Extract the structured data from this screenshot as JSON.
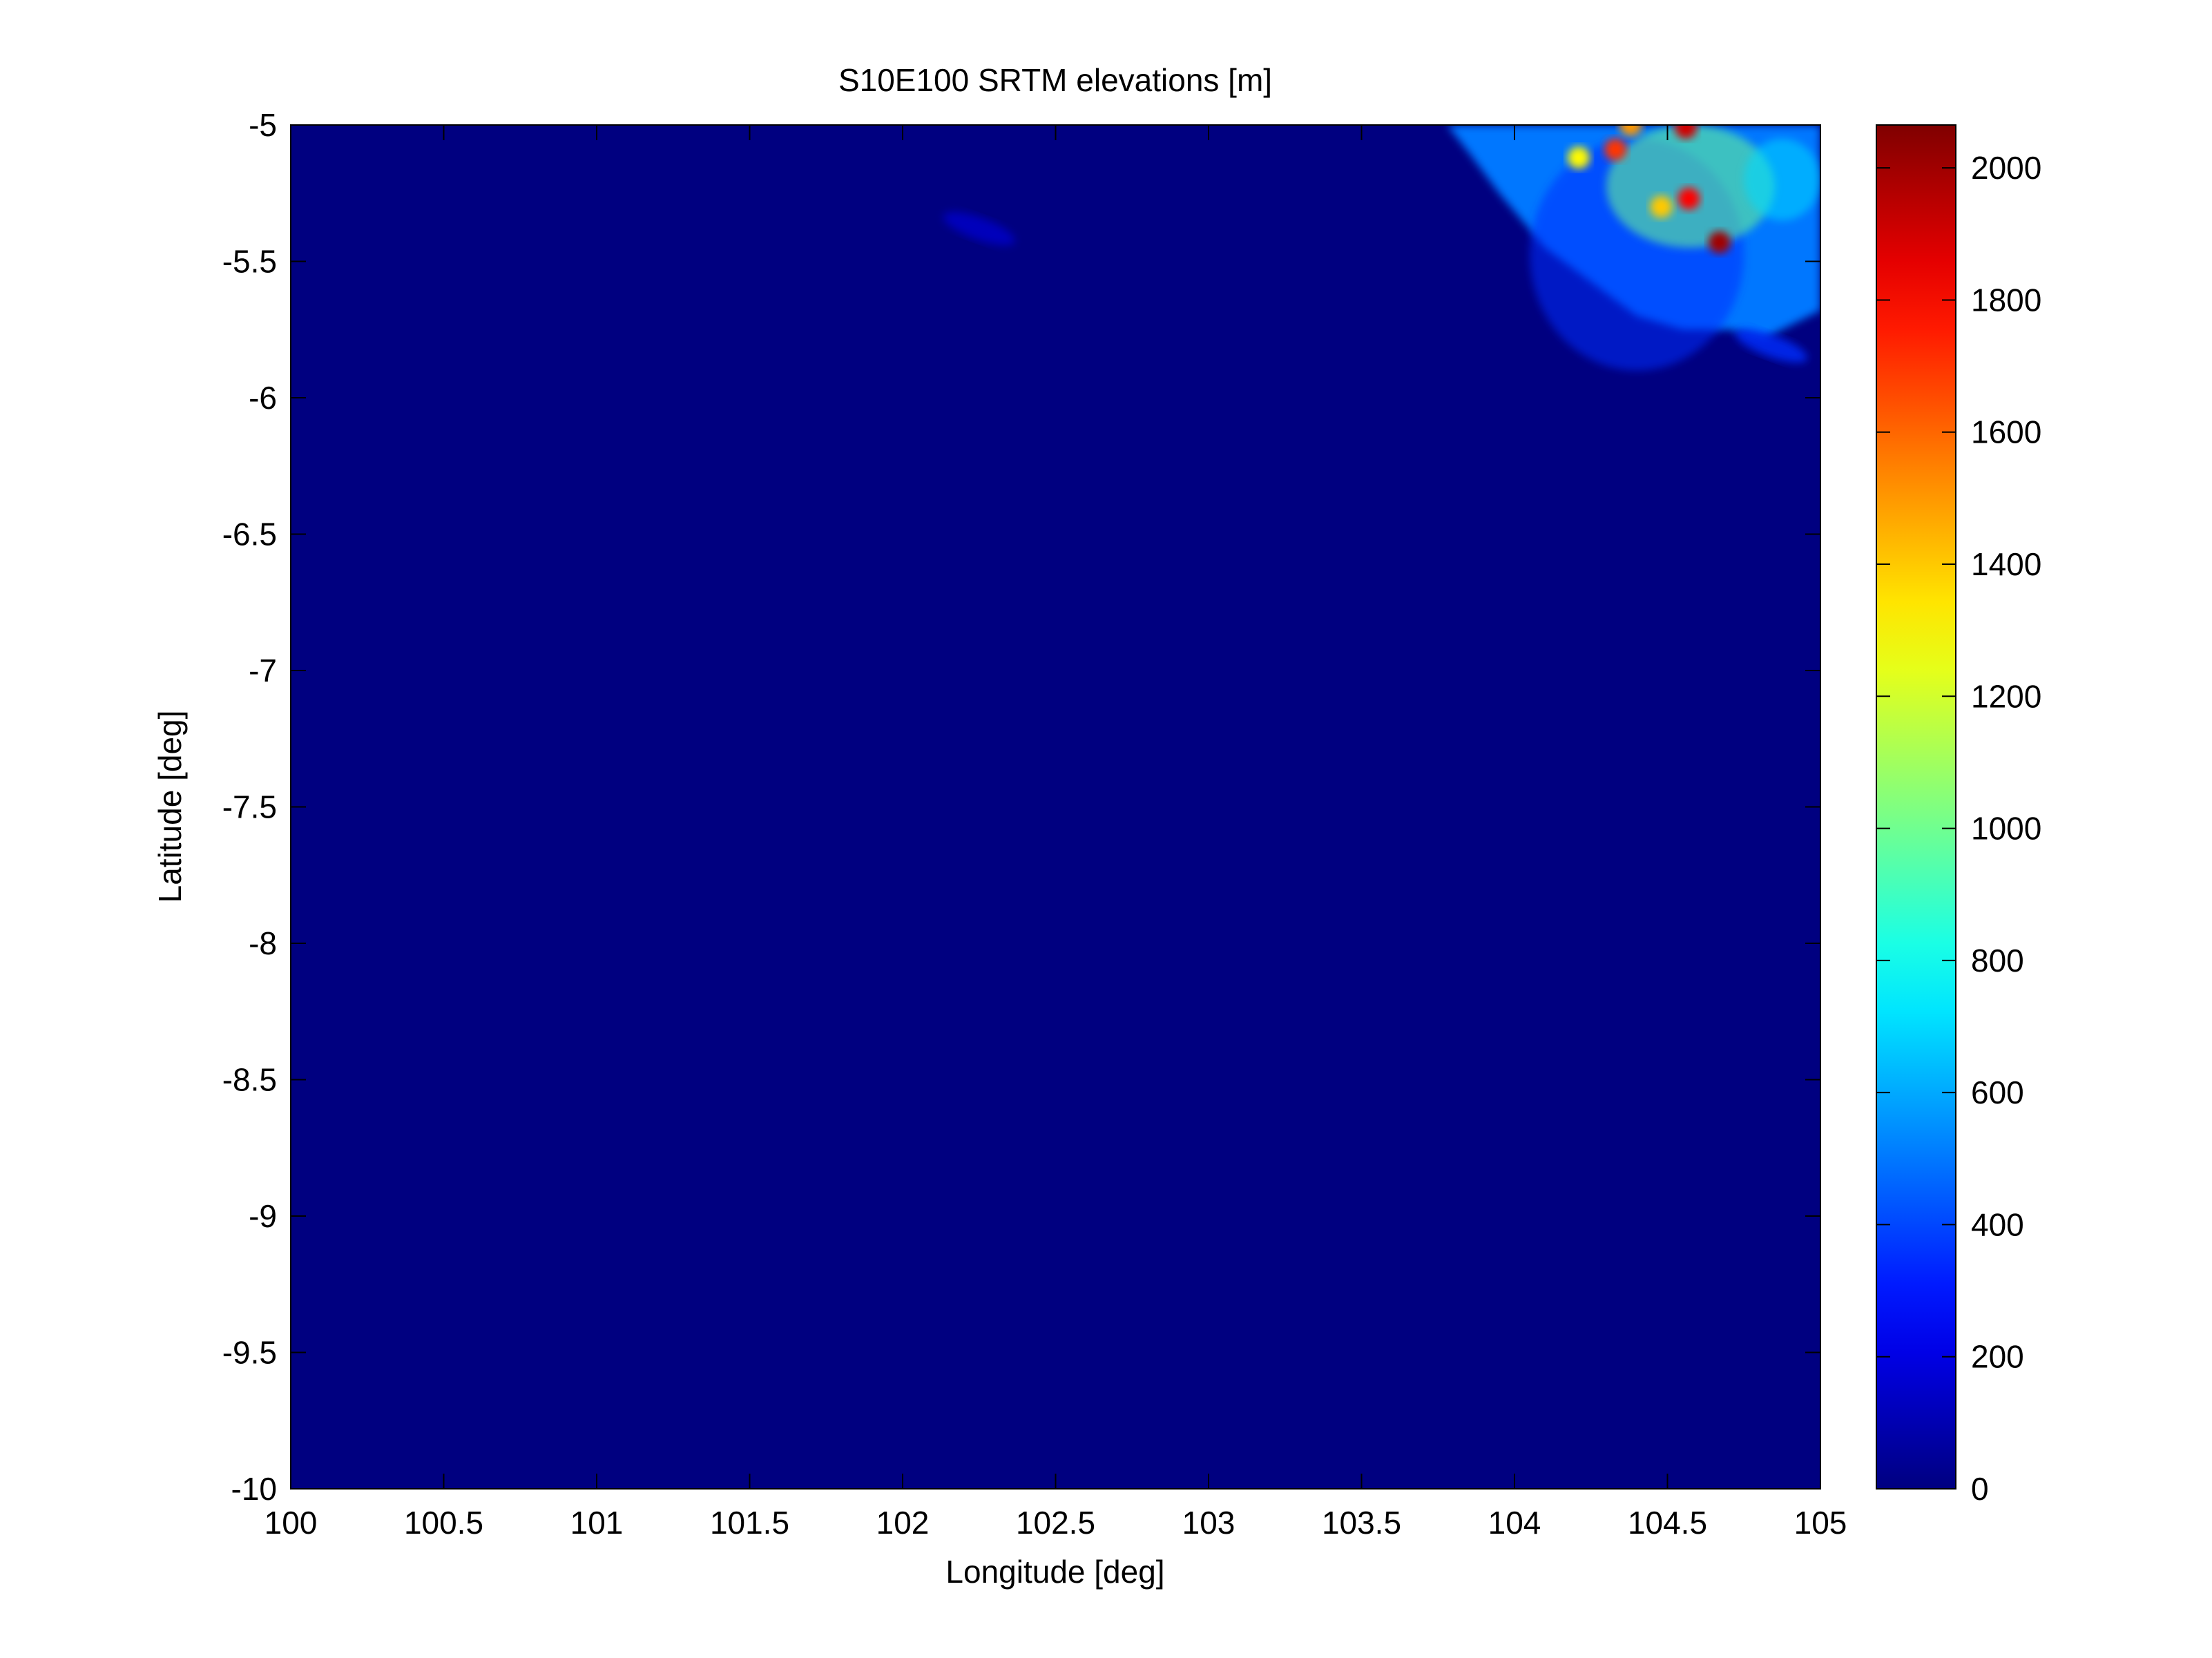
{
  "chart_data": {
    "type": "heatmap",
    "title": "S10E100 SRTM elevations [m]",
    "xlabel": "Longitude [deg]",
    "ylabel": "Latitude [deg]",
    "xlim": [
      100,
      105
    ],
    "ylim": [
      -10,
      -5
    ],
    "x_ticks": [
      100,
      100.5,
      101,
      101.5,
      102,
      102.5,
      103,
      103.5,
      104,
      104.5,
      105
    ],
    "x_tick_labels": [
      "100",
      "100.5",
      "101",
      "101.5",
      "102",
      "102.5",
      "103",
      "103.5",
      "104",
      "104.5",
      "105"
    ],
    "y_ticks": [
      -5,
      -5.5,
      -6,
      -6.5,
      -7,
      -7.5,
      -8,
      -8.5,
      -9,
      -9.5,
      -10
    ],
    "y_tick_labels": [
      "-5",
      "-5.5",
      "-6",
      "-6.5",
      "-7",
      "-7.5",
      "-8",
      "-8.5",
      "-9",
      "-9.5",
      "-10"
    ],
    "colorbar": {
      "colormap": "jet",
      "range": [
        0,
        2065
      ],
      "ticks": [
        0,
        200,
        400,
        600,
        800,
        1000,
        1200,
        1400,
        1600,
        1800,
        2000
      ],
      "tick_labels": [
        "0",
        "200",
        "400",
        "600",
        "800",
        "1000",
        "1200",
        "1400",
        "1600",
        "1800",
        "2000"
      ]
    },
    "background_value": 0,
    "land_region": {
      "outline": [
        [
          103.78,
          -5.0
        ],
        [
          105.0,
          -5.0
        ],
        [
          105.0,
          -5.68
        ],
        [
          104.82,
          -5.78
        ],
        [
          104.7,
          -5.75
        ],
        [
          104.55,
          -5.75
        ],
        [
          104.4,
          -5.7
        ],
        [
          104.1,
          -5.45
        ],
        [
          103.95,
          -5.25
        ],
        [
          103.85,
          -5.1
        ]
      ],
      "base_elevation": 500
    },
    "features": [
      {
        "lon": [
          104.05,
          104.75
        ],
        "lat": [
          -5.05,
          -5.9
        ],
        "elevation": 350
      },
      {
        "lon": [
          104.3,
          104.85
        ],
        "lat": [
          -5.0,
          -5.45
        ],
        "elevation": 1000
      },
      {
        "lon": [
          104.75,
          105.0
        ],
        "lat": [
          -5.05,
          -5.35
        ],
        "elevation": 700
      }
    ],
    "peaks": [
      {
        "lon": 104.33,
        "lat": -5.09,
        "elevation": 1700
      },
      {
        "lon": 104.56,
        "lat": -5.01,
        "elevation": 1900
      },
      {
        "lon": 104.38,
        "lat": -5.0,
        "elevation": 1500
      },
      {
        "lon": 104.57,
        "lat": -5.27,
        "elevation": 1800
      },
      {
        "lon": 104.67,
        "lat": -5.43,
        "elevation": 2000
      },
      {
        "lon": 104.48,
        "lat": -5.3,
        "elevation": 1400
      },
      {
        "lon": 104.21,
        "lat": -5.12,
        "elevation": 1300
      }
    ],
    "minor_features": [
      {
        "lon": 102.25,
        "lat": -5.38,
        "elevation": 150
      },
      {
        "lon": 104.84,
        "lat": -5.81,
        "elevation": 350
      }
    ]
  }
}
